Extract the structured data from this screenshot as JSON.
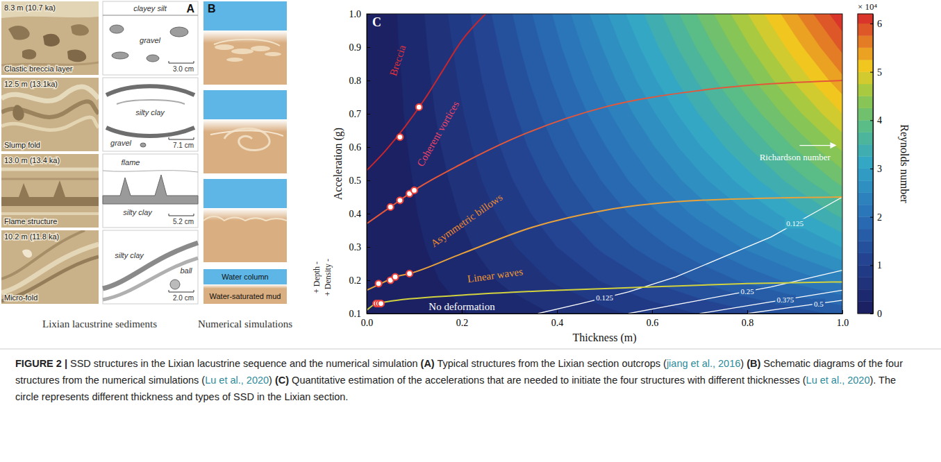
{
  "panel_a": {
    "letter": "A",
    "label": "Lixian lacustrine sediments",
    "rows": [
      {
        "depth": "8.3 m (10.7 ka)",
        "structure": "Clastic breccia layer",
        "sketch_labels": [
          "clayey silt",
          "gravel"
        ],
        "scale_bar": "3.0 cm"
      },
      {
        "depth": "12.5 m (13.1ka)",
        "structure": "Slump fold",
        "sketch_labels": [
          "silty clay",
          "gravel"
        ],
        "scale_bar": "7.1 cm"
      },
      {
        "depth": "13.0 m (13.4 ka)",
        "structure": "Flame structure",
        "sketch_labels": [
          "flame",
          "silty clay"
        ],
        "scale_bar": "5.2 cm"
      },
      {
        "depth": "10.2 m (11.8 ka)",
        "structure": "Micro-fold",
        "sketch_labels": [
          "silty clay",
          "ball"
        ],
        "scale_bar": "2.0 cm"
      }
    ]
  },
  "panel_b": {
    "letter": "B",
    "label": "Numerical simulations",
    "layer_labels": [
      "Water column",
      "Water-saturated mud"
    ],
    "side_labels": [
      "+ Depth -",
      "+ Density -"
    ]
  },
  "chart_data": {
    "type": "contour",
    "letter": "C",
    "x_label": "Thickness (m)",
    "y_label": "Acceleration (g)",
    "xlim": [
      0,
      1
    ],
    "ylim": [
      0.1,
      1
    ],
    "xticks": [
      {
        "value": 0,
        "label": "0.0"
      },
      0.2,
      0.4,
      0.6,
      0.8,
      {
        "value": 1,
        "label": "1.0"
      }
    ],
    "yticks": [
      0.1,
      0.2,
      0.3,
      0.4,
      0.5,
      0.6,
      0.7,
      0.8,
      0.9,
      {
        "value": 1,
        "label": "1.0"
      }
    ],
    "reynolds": {
      "x": [
        0,
        0.1,
        0.2,
        0.3,
        0.4,
        0.5,
        0.6,
        0.7,
        0.8,
        0.9,
        1.0
      ],
      "y": [
        0.1,
        0.2,
        0.3,
        0.4,
        0.5,
        0.6,
        0.7,
        0.8,
        0.9,
        1.0
      ],
      "values": [
        [
          0,
          0.1,
          0.23,
          0.37,
          0.52,
          0.68,
          0.84,
          1.01,
          1.19,
          1.37,
          1.56
        ],
        [
          0,
          0.15,
          0.34,
          0.56,
          0.79,
          1.03,
          1.28,
          1.54,
          1.81,
          2.08,
          2.36
        ],
        [
          0,
          0.19,
          0.44,
          0.71,
          1.0,
          1.31,
          1.63,
          1.96,
          2.3,
          2.65,
          3.01
        ],
        [
          0,
          0.23,
          0.52,
          0.84,
          1.19,
          1.56,
          1.94,
          2.33,
          2.74,
          3.15,
          3.58
        ],
        [
          0,
          0.26,
          0.59,
          0.97,
          1.36,
          1.78,
          2.22,
          2.67,
          3.13,
          3.61,
          4.09
        ],
        [
          0,
          0.29,
          0.66,
          1.08,
          1.52,
          1.98,
          2.47,
          2.98,
          3.49,
          4.02,
          4.56
        ],
        [
          0,
          0.32,
          0.73,
          1.18,
          1.67,
          2.18,
          2.71,
          3.26,
          3.83,
          4.41,
          5.0
        ],
        [
          0,
          0.34,
          0.79,
          1.28,
          1.81,
          2.36,
          2.94,
          3.54,
          4.15,
          4.78,
          5.43
        ],
        [
          0,
          0.37,
          0.84,
          1.37,
          1.94,
          2.53,
          3.16,
          3.8,
          4.45,
          5.13,
          5.82
        ],
        [
          0,
          0.39,
          0.9,
          1.46,
          2.06,
          2.7,
          3.36,
          4.04,
          4.74,
          5.46,
          6.2
        ]
      ]
    },
    "colorbar": {
      "label": "Reynolds number",
      "multiplier": "× 10⁴",
      "range": [
        0,
        6.2
      ],
      "ticks": [
        0,
        1,
        2,
        3,
        4,
        5,
        6
      ]
    },
    "series": [
      {
        "type": "line",
        "color": "#c8262e",
        "x": [
          0,
          0.04,
          0.08,
          0.12,
          0.16,
          0.2,
          0.25
        ],
        "values": [
          0.53,
          0.59,
          0.66,
          0.74,
          0.83,
          0.92,
          1.0
        ]
      },
      {
        "type": "line",
        "color": "#e4573a",
        "x": [
          0,
          0.05,
          0.1,
          0.2,
          0.3,
          0.5,
          0.7,
          1.0
        ],
        "values": [
          0.37,
          0.42,
          0.47,
          0.55,
          0.62,
          0.72,
          0.77,
          0.8
        ]
      },
      {
        "type": "line",
        "color": "#e9a23b",
        "x": [
          0,
          0.03,
          0.06,
          0.09,
          0.2,
          0.35,
          0.5,
          0.7,
          1.0
        ],
        "values": [
          0.17,
          0.19,
          0.21,
          0.22,
          0.28,
          0.36,
          0.41,
          0.44,
          0.45
        ]
      },
      {
        "type": "line",
        "color": "#d2d23e",
        "x": [
          0,
          0.02,
          0.04,
          0.2,
          0.4,
          0.6,
          0.8,
          1.0
        ],
        "values": [
          0.11,
          0.13,
          0.135,
          0.155,
          0.17,
          0.18,
          0.19,
          0.195
        ]
      },
      {
        "type": "scatter",
        "marker": "circle",
        "color": "#e8413c",
        "x": [
          0.02,
          0.025,
          0.03,
          0.025,
          0.05,
          0.06,
          0.09,
          0.05,
          0.07,
          0.09,
          0.1,
          0.07,
          0.11
        ],
        "values": [
          0.13,
          0.13,
          0.13,
          0.19,
          0.2,
          0.21,
          0.22,
          0.42,
          0.44,
          0.46,
          0.47,
          0.63,
          0.72
        ]
      }
    ],
    "annotations": [
      {
        "text": "Breccia",
        "color": "#e0323c"
      },
      {
        "text": "Coherent vortices",
        "color": "#ef4468"
      },
      {
        "text": "Asymmetric billows",
        "color": "#f08a2c"
      },
      {
        "text": "Linear waves",
        "color": "#f29a2e"
      },
      {
        "text": "No deformation",
        "color": "#ffffff"
      }
    ],
    "richardson": {
      "label": "Richardson number",
      "color": "#ffffff",
      "contours": [
        {
          "level": 0.125,
          "x": [
            0.36,
            0.45,
            0.55,
            0.65,
            0.75,
            0.85,
            0.95,
            1.0
          ],
          "values": [
            0.1,
            0.13,
            0.165,
            0.21,
            0.27,
            0.33,
            0.41,
            0.45
          ]
        },
        {
          "level": 0.25,
          "x": [
            0.55,
            0.7,
            0.85,
            1.0
          ],
          "values": [
            0.1,
            0.14,
            0.18,
            0.23
          ]
        },
        {
          "level": 0.375,
          "x": [
            0.7,
            0.85,
            1.0
          ],
          "values": [
            0.1,
            0.135,
            0.17
          ]
        },
        {
          "level": 0.5,
          "x": [
            0.8,
            0.9,
            1.0
          ],
          "values": [
            0.1,
            0.12,
            0.14
          ]
        }
      ]
    }
  },
  "caption": [
    {
      "text": "FIGURE 2 | ",
      "style": "bold"
    },
    {
      "text": "SSD structures in the Lixian lacustrine sequence and the numerical simulation ",
      "style": "plain"
    },
    {
      "text": "(A)",
      "style": "bold"
    },
    {
      "text": " Typical structures from the Lixian section outcrops (",
      "style": "plain"
    },
    {
      "text": "jiang et al., 2016",
      "style": "cite"
    },
    {
      "text": ") ",
      "style": "plain"
    },
    {
      "text": "(B)",
      "style": "bold"
    },
    {
      "text": " Schematic diagrams of the four structures from the numerical simulations (",
      "style": "plain"
    },
    {
      "text": "Lu et al., 2020",
      "style": "cite"
    },
    {
      "text": ") ",
      "style": "plain"
    },
    {
      "text": "(C)",
      "style": "bold"
    },
    {
      "text": " Quantitative estimation of the accelerations that are needed to initiate the four structures with different thicknesses (",
      "style": "plain"
    },
    {
      "text": "Lu et al., 2020",
      "style": "cite"
    },
    {
      "text": "). The circle represents different thickness and types of SSD in the Lixian section.",
      "style": "plain"
    }
  ]
}
